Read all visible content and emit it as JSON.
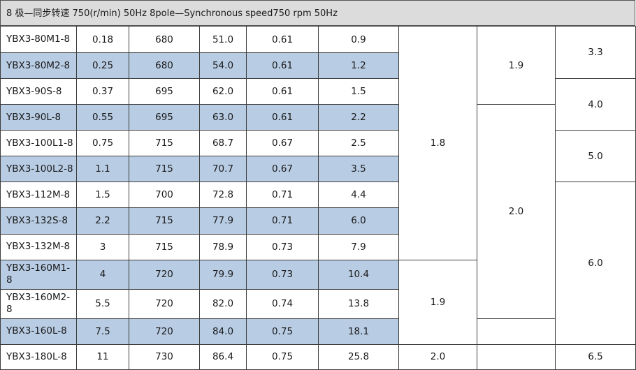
{
  "title": "8 极—同步转速 750(r/min) 50Hz 8pole—Synchronous  speed750  rpm     50Hz",
  "rows": [
    {
      "model": "YBX3-80M1-8",
      "c1": "0.18",
      "c2": "680",
      "c3": "51.0",
      "c4": "0.61",
      "c5": "0.9",
      "shaded": false
    },
    {
      "model": "YBX3-80M2-8",
      "c1": "0.25",
      "c2": "680",
      "c3": "54.0",
      "c4": "0.61",
      "c5": "1.2",
      "shaded": true
    },
    {
      "model": "YBX3-90S-8",
      "c1": "0.37",
      "c2": "695",
      "c3": "62.0",
      "c4": "0.61",
      "c5": "1.5",
      "shaded": false
    },
    {
      "model": "YBX3-90L-8",
      "c1": "0.55",
      "c2": "695",
      "c3": "63.0",
      "c4": "0.61",
      "c5": "2.2",
      "shaded": true
    },
    {
      "model": "YBX3-100L1-8",
      "c1": "0.75",
      "c2": "715",
      "c3": "68.7",
      "c4": "0.67",
      "c5": "2.5",
      "shaded": false
    },
    {
      "model": "YBX3-100L2-8",
      "c1": "1.1",
      "c2": "715",
      "c3": "70.7",
      "c4": "0.67",
      "c5": "3.5",
      "shaded": true
    },
    {
      "model": "YBX3-112M-8",
      "c1": "1.5",
      "c2": "700",
      "c3": "72.8",
      "c4": "0.71",
      "c5": "4.4",
      "shaded": false
    },
    {
      "model": "YBX3-132S-8",
      "c1": "2.2",
      "c2": "715",
      "c3": "77.9",
      "c4": "0.71",
      "c5": "6.0",
      "shaded": true
    },
    {
      "model": "YBX3-132M-8",
      "c1": "3",
      "c2": "715",
      "c3": "78.9",
      "c4": "0.73",
      "c5": "7.9",
      "shaded": false
    },
    {
      "model": "YBX3-160M1-8",
      "c1": "4",
      "c2": "720",
      "c3": "79.9",
      "c4": "0.73",
      "c5": "10.4",
      "shaded": true
    },
    {
      "model": "YBX3-160M2-8",
      "c1": "5.5",
      "c2": "720",
      "c3": "82.0",
      "c4": "0.74",
      "c5": "13.8",
      "shaded": false
    },
    {
      "model": "YBX3-160L-8",
      "c1": "7.5",
      "c2": "720",
      "c3": "84.0",
      "c4": "0.75",
      "c5": "18.1",
      "shaded": true
    },
    {
      "model": "YBX3-180L-8",
      "c1": "11",
      "c2": "730",
      "c3": "86.4",
      "c4": "0.75",
      "c5": "25.8",
      "shaded": false
    }
  ],
  "merged": {
    "col6": [
      "1.8",
      "1.9",
      "2.0"
    ],
    "col7": [
      "1.9",
      "2.0"
    ],
    "col8": [
      "3.3",
      "4.0",
      "5.0",
      "6.0",
      "6.5"
    ]
  },
  "colors": {
    "shade": "#b8cce4",
    "title_bg": "#dcdcdc"
  }
}
